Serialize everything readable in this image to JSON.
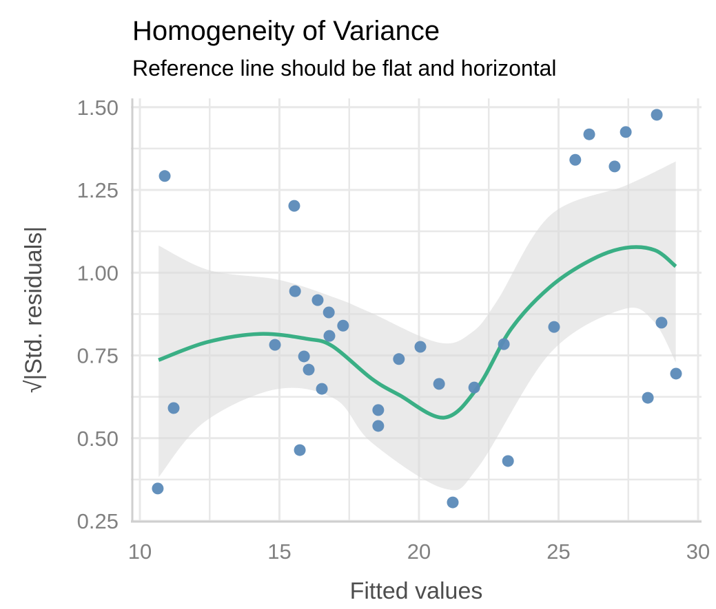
{
  "chart_data": {
    "type": "scatter",
    "title": "Homogeneity of Variance",
    "subtitle": "Reference line should be flat and horizontal",
    "xlabel": "Fitted values",
    "ylabel": "√|Std. residuals|",
    "xlim": [
      9.7,
      30.1
    ],
    "ylim": [
      0.25,
      1.52
    ],
    "xticks": [
      10,
      15,
      20,
      25,
      30
    ],
    "xtick_labels": [
      "10",
      "15",
      "20",
      "25",
      "30"
    ],
    "yticks": [
      0.25,
      0.5,
      0.75,
      1.0,
      1.25,
      1.5
    ],
    "ytick_labels": [
      "0.25",
      "0.50",
      "0.75",
      "1.00",
      "1.25",
      "1.50"
    ],
    "grid": true,
    "colors": {
      "points": "#5b8ab8",
      "line": "#3aaf85",
      "band": "#e6e6e6",
      "grid": "#e8e8e8"
    },
    "points": [
      [
        10.64,
        0.348
      ],
      [
        10.89,
        1.292
      ],
      [
        11.21,
        0.591
      ],
      [
        14.84,
        0.782
      ],
      [
        15.53,
        1.202
      ],
      [
        15.56,
        0.944
      ],
      [
        15.73,
        0.464
      ],
      [
        15.88,
        0.747
      ],
      [
        16.05,
        0.707
      ],
      [
        16.37,
        0.917
      ],
      [
        16.52,
        0.649
      ],
      [
        16.77,
        0.88
      ],
      [
        16.79,
        0.809
      ],
      [
        17.28,
        0.84
      ],
      [
        18.54,
        0.585
      ],
      [
        18.54,
        0.537
      ],
      [
        19.28,
        0.739
      ],
      [
        20.05,
        0.776
      ],
      [
        20.72,
        0.664
      ],
      [
        21.21,
        0.306
      ],
      [
        21.98,
        0.653
      ],
      [
        23.04,
        0.784
      ],
      [
        23.19,
        0.431
      ],
      [
        24.84,
        0.836
      ],
      [
        25.6,
        1.341
      ],
      [
        26.1,
        1.418
      ],
      [
        27.01,
        1.321
      ],
      [
        27.41,
        1.425
      ],
      [
        28.52,
        1.477
      ],
      [
        28.2,
        0.622
      ],
      [
        28.69,
        0.849
      ],
      [
        29.21,
        0.695
      ]
    ],
    "smooth": {
      "x": [
        10.67,
        12.4,
        14.3,
        16.0,
        16.9,
        18.3,
        19.3,
        20.9,
        22.1,
        23.3,
        24.7,
        26.2,
        27.4,
        28.45,
        29.2
      ],
      "y": [
        0.736,
        0.79,
        0.815,
        0.8,
        0.778,
        0.68,
        0.63,
        0.562,
        0.653,
        0.83,
        0.957,
        1.04,
        1.075,
        1.068,
        1.019
      ]
    },
    "band_upper": {
      "x": [
        10.67,
        12.5,
        15.0,
        17.0,
        18.2,
        20.7,
        21.9,
        22.8,
        24.7,
        27.4,
        29.2
      ],
      "y": [
        1.082,
        1.007,
        0.978,
        0.924,
        0.882,
        0.789,
        0.82,
        0.915,
        1.173,
        1.263,
        1.336
      ]
    },
    "band_lower": {
      "x": [
        10.67,
        12.3,
        14.9,
        17.0,
        18.3,
        20.9,
        22.1,
        24.7,
        27.3,
        28.4,
        29.2
      ],
      "y": [
        0.382,
        0.548,
        0.648,
        0.618,
        0.487,
        0.348,
        0.41,
        0.757,
        0.889,
        0.854,
        0.729
      ]
    }
  }
}
